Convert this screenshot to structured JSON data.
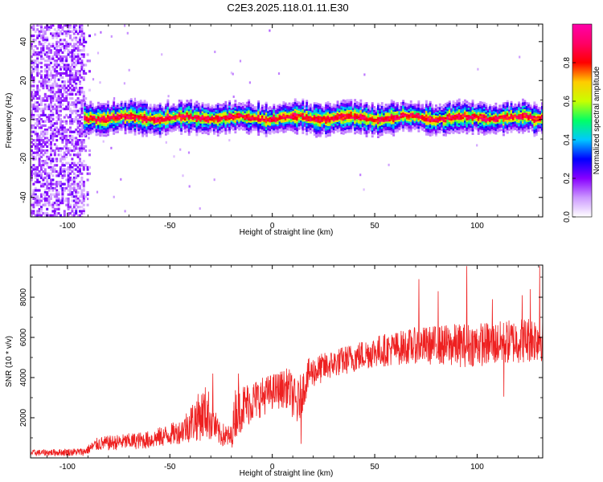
{
  "title": "C2E3.2025.118.01.11.E30",
  "chart_data": [
    {
      "type": "heatmap",
      "xlabel": "Height of straight line (km)",
      "ylabel": "Frequency (Hz)",
      "xlim": [
        -118,
        132
      ],
      "ylim": [
        -50,
        49
      ],
      "xticks": [
        -100,
        -50,
        0,
        50,
        100
      ],
      "yticks": [
        -40,
        -20,
        0,
        20,
        40
      ],
      "colorbar": {
        "label": "Normalized spectral amplitude",
        "range": [
          0,
          1
        ],
        "ticks": [
          0.0,
          0.2,
          0.4,
          0.6,
          0.8
        ],
        "tick_labels": [
          "0.0",
          "0.2",
          "0.4",
          "0.6",
          "0.8"
        ],
        "colors": [
          "#ffffff",
          "#cc99ff",
          "#8800ff",
          "#0000ff",
          "#00c8ff",
          "#00ff66",
          "#c8ff00",
          "#ffcc00",
          "#ff0000",
          "#ff0066",
          "#ff00aa"
        ]
      },
      "features": {
        "noise_region_x": [
          -118,
          -92
        ],
        "main_band_start_x": -92,
        "main_band_center_hz": 1.5,
        "peak_amplitude": 0.9
      }
    },
    {
      "type": "line",
      "xlabel": "Height of straight line (km)",
      "ylabel": "SNR (10 * v/v)",
      "xlim": [
        -118,
        132
      ],
      "ylim": [
        0,
        9600
      ],
      "xticks": [
        -100,
        -50,
        0,
        50,
        100
      ],
      "yticks": [
        2000,
        4000,
        6000,
        8000
      ],
      "color": "#ee2020",
      "trend": [
        {
          "x": -118,
          "y": 250,
          "spread": 150
        },
        {
          "x": -92,
          "y": 300,
          "spread": 200
        },
        {
          "x": -85,
          "y": 700,
          "spread": 350
        },
        {
          "x": -60,
          "y": 900,
          "spread": 450
        },
        {
          "x": -45,
          "y": 1300,
          "spread": 600
        },
        {
          "x": -38,
          "y": 1900,
          "spread": 1100
        },
        {
          "x": -32,
          "y": 2300,
          "spread": 1400
        },
        {
          "x": -26,
          "y": 1200,
          "spread": 600
        },
        {
          "x": -20,
          "y": 1000,
          "spread": 600
        },
        {
          "x": -18,
          "y": 2300,
          "spread": 1300
        },
        {
          "x": -12,
          "y": 2700,
          "spread": 1100
        },
        {
          "x": 0,
          "y": 3300,
          "spread": 900
        },
        {
          "x": 8,
          "y": 3500,
          "spread": 1000
        },
        {
          "x": 12,
          "y": 2600,
          "spread": 1200
        },
        {
          "x": 18,
          "y": 4200,
          "spread": 800
        },
        {
          "x": 30,
          "y": 4700,
          "spread": 700
        },
        {
          "x": 50,
          "y": 5300,
          "spread": 800
        },
        {
          "x": 70,
          "y": 5600,
          "spread": 900
        },
        {
          "x": 90,
          "y": 5600,
          "spread": 1100
        },
        {
          "x": 110,
          "y": 5700,
          "spread": 1100
        },
        {
          "x": 132,
          "y": 6000,
          "spread": 1200
        }
      ],
      "spikes": [
        {
          "x": 71.5,
          "y": 8900
        },
        {
          "x": 81,
          "y": 8300
        },
        {
          "x": 95,
          "y": 9550
        },
        {
          "x": 113,
          "y": 8600
        },
        {
          "x": 122,
          "y": 8100
        },
        {
          "x": 126,
          "y": 8400
        },
        {
          "x": 130.5,
          "y": 9550
        },
        {
          "x": 107.5,
          "y": 7900
        },
        {
          "x": -29,
          "y": 4200
        },
        {
          "x": -16.5,
          "y": 4200
        }
      ],
      "minimums": [
        {
          "x": 14,
          "y": 700
        },
        {
          "x": 113,
          "y": 3050
        },
        {
          "x": -118,
          "y": 100
        }
      ]
    }
  ]
}
